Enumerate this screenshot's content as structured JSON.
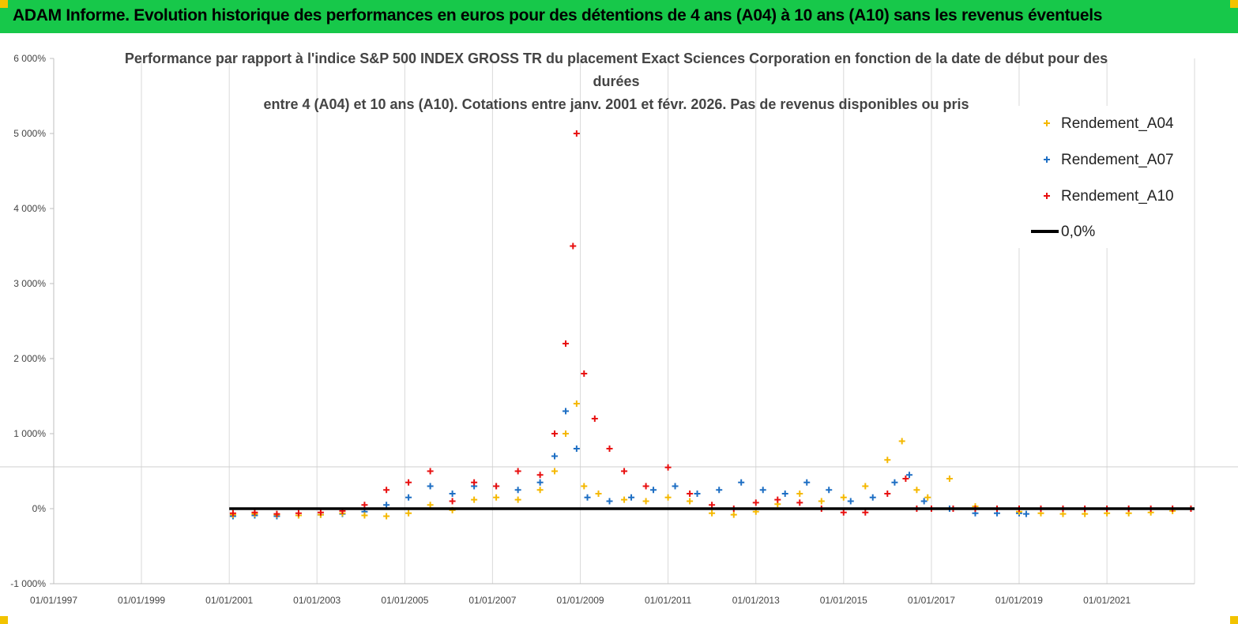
{
  "banner": {
    "title": "ADAM Informe. Evolution historique des performances en euros pour des détentions de 4 ans (A04) à 10 ans (A10) sans les revenus éventuels",
    "background": "#17c84a"
  },
  "chart_data": {
    "type": "scatter",
    "title_lines": [
      "Performance par rapport à l'indice S&P 500 INDEX GROSS TR  du placement Exact Sciences Corporation en fonction de la date de début pour des",
      "durées",
      "entre 4 (A04) et 10 ans (A10).  Cotations entre janv. 2001 et févr.  2026. Pas de revenus disponibles ou pris"
    ],
    "xlabel": "",
    "ylabel": "",
    "x_tick_labels": [
      "01/01/1997",
      "01/01/1999",
      "01/01/2001",
      "01/01/2003",
      "01/01/2005",
      "01/01/2007",
      "01/01/2009",
      "01/01/2011",
      "01/01/2013",
      "01/01/2015",
      "01/01/2017",
      "01/01/2019",
      "01/01/2021"
    ],
    "xlim": [
      "1997-01-01",
      "2022-12-31"
    ],
    "y_ticks": [
      -10,
      0,
      10,
      20,
      30,
      40,
      50,
      60
    ],
    "y_tick_labels": [
      "-1 000%",
      "0%",
      "1 000%",
      "2 000%",
      "3 000%",
      "4 000%",
      "5 000%",
      "6 000%"
    ],
    "ylim": [
      -10,
      60
    ],
    "grid": "vertical",
    "legend_position": "top-right",
    "legend": [
      {
        "label": "Rendement_A04",
        "color": "#f5b800",
        "marker": "+"
      },
      {
        "label": "Rendement_A07",
        "color": "#1e6fc4",
        "marker": "+"
      },
      {
        "label": "Rendement_A10",
        "color": "#e81010",
        "marker": "+"
      },
      {
        "label": "0,0%",
        "color": "#000000",
        "marker": "line"
      }
    ],
    "series": [
      {
        "name": "Rendement_A04",
        "color": "#f5b800",
        "x": [
          "2001-02-01",
          "2001-08-01",
          "2002-02-01",
          "2002-08-01",
          "2003-02-01",
          "2003-08-01",
          "2004-02-01",
          "2004-08-01",
          "2005-02-01",
          "2005-08-01",
          "2006-02-01",
          "2006-08-01",
          "2007-02-01",
          "2007-08-01",
          "2008-02-01",
          "2008-06-01",
          "2008-09-01",
          "2008-12-01",
          "2009-02-01",
          "2009-06-01",
          "2010-01-01",
          "2010-07-01",
          "2011-01-01",
          "2011-07-01",
          "2012-01-01",
          "2012-07-01",
          "2013-01-01",
          "2013-07-01",
          "2014-01-01",
          "2014-07-01",
          "2015-01-01",
          "2015-07-01",
          "2016-01-01",
          "2016-05-01",
          "2016-09-01",
          "2016-12-01",
          "2017-06-01",
          "2018-01-01",
          "2018-07-01",
          "2019-01-01",
          "2019-07-01",
          "2020-01-01",
          "2020-07-01",
          "2021-01-01",
          "2021-07-01",
          "2022-01-01",
          "2022-07-01",
          "2022-12-01"
        ],
        "y": [
          -0.8,
          -0.7,
          -0.8,
          -0.9,
          -0.8,
          -0.6,
          -0.9,
          -1.0,
          -0.6,
          0.5,
          -0.2,
          1.2,
          1.5,
          1.2,
          2.5,
          5.0,
          10.0,
          14.0,
          3.0,
          2.0,
          1.2,
          1.0,
          1.5,
          1.0,
          -0.6,
          -0.8,
          -0.4,
          0.6,
          2.0,
          1.0,
          1.5,
          3.0,
          6.5,
          9.0,
          2.5,
          1.5,
          4.0,
          0.3,
          0.0,
          -0.4,
          -0.6,
          -0.7,
          -0.7,
          -0.6,
          -0.6,
          -0.5,
          -0.3,
          0.0
        ]
      },
      {
        "name": "Rendement_A07",
        "color": "#1e6fc4",
        "x": [
          "2001-02-01",
          "2001-08-01",
          "2002-02-01",
          "2002-08-01",
          "2003-02-01",
          "2003-08-01",
          "2004-02-01",
          "2004-08-01",
          "2005-02-01",
          "2005-08-01",
          "2006-02-01",
          "2006-08-01",
          "2007-02-01",
          "2007-08-01",
          "2008-02-01",
          "2008-06-01",
          "2008-09-01",
          "2008-12-01",
          "2009-03-01",
          "2009-09-01",
          "2010-03-01",
          "2010-09-01",
          "2011-03-01",
          "2011-09-01",
          "2012-03-01",
          "2012-09-01",
          "2013-03-01",
          "2013-09-01",
          "2014-03-01",
          "2014-09-01",
          "2015-03-01",
          "2015-09-01",
          "2016-03-01",
          "2016-07-01",
          "2016-11-01",
          "2017-06-01",
          "2018-01-01",
          "2018-07-01",
          "2019-01-01",
          "2019-03-01"
        ],
        "y": [
          -1.0,
          -0.9,
          -1.0,
          -0.9,
          -0.8,
          -0.7,
          -0.4,
          0.5,
          1.5,
          3.0,
          2.0,
          3.0,
          3.0,
          2.5,
          3.5,
          7.0,
          13.0,
          8.0,
          1.5,
          1.0,
          1.5,
          2.5,
          3.0,
          2.0,
          2.5,
          3.5,
          2.5,
          2.0,
          3.5,
          2.5,
          1.0,
          1.5,
          3.5,
          4.5,
          1.0,
          0.0,
          -0.6,
          -0.6,
          -0.6,
          -0.7
        ]
      },
      {
        "name": "Rendement_A10",
        "color": "#e81010",
        "x": [
          "2001-02-01",
          "2001-08-01",
          "2002-02-01",
          "2002-08-01",
          "2003-02-01",
          "2003-08-01",
          "2004-02-01",
          "2004-08-01",
          "2005-02-01",
          "2005-08-01",
          "2006-02-01",
          "2006-08-01",
          "2007-02-01",
          "2007-08-01",
          "2008-02-01",
          "2008-06-01",
          "2008-09-01",
          "2008-11-01",
          "2008-12-01",
          "2009-02-01",
          "2009-05-01",
          "2009-09-01",
          "2010-01-01",
          "2010-07-01",
          "2011-01-01",
          "2011-07-01",
          "2012-01-01",
          "2012-07-01",
          "2013-01-01",
          "2013-07-01",
          "2014-01-01",
          "2014-07-01",
          "2015-01-01",
          "2015-07-01",
          "2016-01-01",
          "2016-06-01",
          "2016-09-01",
          "2017-01-01",
          "2017-07-01",
          "2018-01-01",
          "2018-07-01",
          "2019-01-01",
          "2019-07-01",
          "2020-01-01",
          "2020-07-01",
          "2021-01-01",
          "2021-07-01",
          "2022-01-01",
          "2022-07-01",
          "2022-12-01"
        ],
        "y": [
          -0.6,
          -0.5,
          -0.7,
          -0.6,
          -0.5,
          -0.3,
          0.5,
          2.5,
          3.5,
          5.0,
          1.0,
          3.5,
          3.0,
          5.0,
          4.5,
          10.0,
          22.0,
          35.0,
          50.0,
          18.0,
          12.0,
          8.0,
          5.0,
          3.0,
          5.5,
          2.0,
          0.5,
          0.0,
          0.8,
          1.2,
          0.8,
          0.0,
          -0.5,
          -0.5,
          2.0,
          4.0,
          0.0,
          0.0,
          0.0,
          0.0,
          0.0,
          0.0,
          0.0,
          0.0,
          0.0,
          0.0,
          0.0,
          0.0,
          0.0,
          0.0
        ]
      },
      {
        "name": "0,0%",
        "color": "#000000",
        "type": "line",
        "x": [
          "2001-01-01",
          "2022-12-31"
        ],
        "y": [
          0,
          0
        ]
      }
    ]
  }
}
